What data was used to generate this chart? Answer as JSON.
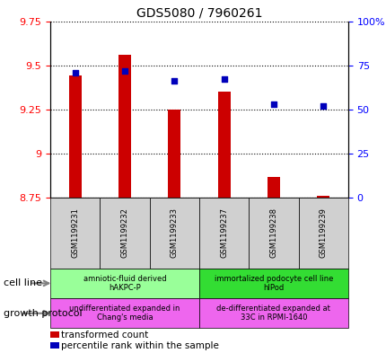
{
  "title": "GDS5080 / 7960261",
  "samples": [
    "GSM1199231",
    "GSM1199232",
    "GSM1199233",
    "GSM1199237",
    "GSM1199238",
    "GSM1199239"
  ],
  "transformed_counts": [
    9.44,
    9.56,
    9.25,
    9.35,
    8.87,
    8.76
  ],
  "percentile_ranks": [
    71,
    72,
    66,
    67,
    53,
    52
  ],
  "ylim_left": [
    8.75,
    9.75
  ],
  "ylim_right": [
    0,
    100
  ],
  "yticks_left": [
    8.75,
    9.0,
    9.25,
    9.5,
    9.75
  ],
  "yticks_right": [
    0,
    25,
    50,
    75,
    100
  ],
  "ytick_labels_left": [
    "8.75",
    "9",
    "9.25",
    "9.5",
    "9.75"
  ],
  "ytick_labels_right": [
    "0",
    "25",
    "50",
    "75",
    "100%"
  ],
  "bar_color": "#cc0000",
  "dot_color": "#0000bb",
  "bar_bottom": 8.75,
  "bar_width": 0.25,
  "cell_line_groups": [
    {
      "label": "amniotic-fluid derived\nhAKPC-P",
      "samples": [
        0,
        1,
        2
      ],
      "color": "#99ff99"
    },
    {
      "label": "immortalized podocyte cell line\nhIPod",
      "samples": [
        3,
        4,
        5
      ],
      "color": "#33dd33"
    }
  ],
  "growth_protocol_groups": [
    {
      "label": "undifferentiated expanded in\nChang's media",
      "samples": [
        0,
        1,
        2
      ],
      "color": "#ee66ee"
    },
    {
      "label": "de-differentiated expanded at\n33C in RPMI-1640",
      "samples": [
        3,
        4,
        5
      ],
      "color": "#ee66ee"
    }
  ],
  "legend_items": [
    {
      "color": "#cc0000",
      "label": "transformed count"
    },
    {
      "color": "#0000bb",
      "label": "percentile rank within the sample"
    }
  ],
  "background_color": "#ffffff",
  "sample_box_color": "#d0d0d0",
  "left_label_cell_line": "cell line",
  "left_label_growth": "growth protocol",
  "title_fontsize": 10,
  "tick_fontsize": 8,
  "sample_fontsize": 6,
  "annot_fontsize": 6,
  "legend_fontsize": 7.5
}
